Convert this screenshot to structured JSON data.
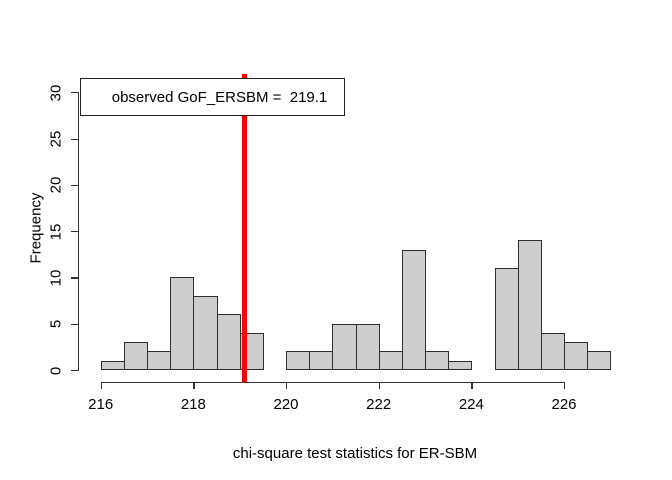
{
  "chart_data": {
    "type": "bar",
    "subtype": "histogram",
    "title": "",
    "xlabel": "chi-square test statistics for ER-SBM",
    "ylabel": "Frequency",
    "bin_start": 216,
    "bin_width": 0.5,
    "frequencies": [
      1,
      3,
      2,
      10,
      8,
      6,
      4,
      0,
      2,
      2,
      5,
      5,
      2,
      13,
      2,
      1,
      0,
      11,
      14,
      4,
      3,
      2
    ],
    "x_ticks": [
      216,
      218,
      220,
      222,
      224,
      226
    ],
    "y_ticks": [
      0,
      5,
      10,
      15,
      20,
      25,
      30
    ],
    "xlim": [
      216,
      227
    ],
    "ylim": [
      0,
      30
    ],
    "grid": false,
    "legend_position": "top-left",
    "observed_value": 219.1,
    "observed_line_color": "#ff0000",
    "bar_fill": "#cdcdcd",
    "bar_border": "#2e2e2e",
    "legend_label": "observed GoF_ERSBM =  219.1"
  }
}
